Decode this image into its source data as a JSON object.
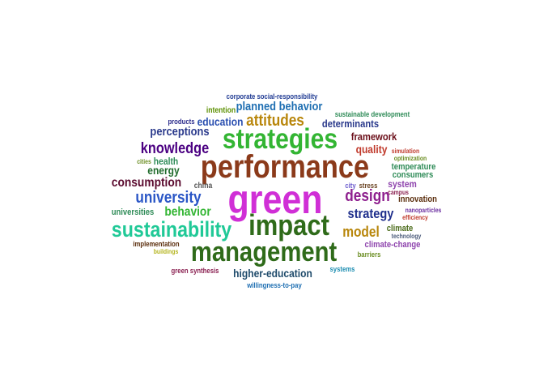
{
  "words": [
    {
      "text": "corporate social-responsibility",
      "color": "#1f3a93"
    },
    {
      "text": "intention",
      "color": "#5b8f00"
    },
    {
      "text": "planned behavior",
      "color": "#1f6fb2"
    },
    {
      "text": "sustainable development",
      "color": "#2e8b57"
    },
    {
      "text": "products",
      "color": "#2b2b8c"
    },
    {
      "text": "education",
      "color": "#2a4fb0"
    },
    {
      "text": "attitudes",
      "color": "#b8860b"
    },
    {
      "text": "determinants",
      "color": "#2b3a8c"
    },
    {
      "text": "perceptions",
      "color": "#2b3a8c"
    },
    {
      "text": "strategies",
      "color": "#33b533"
    },
    {
      "text": "framework",
      "color": "#6b0f1a"
    },
    {
      "text": "knowledge",
      "color": "#4b0082"
    },
    {
      "text": "quality",
      "color": "#c0392b"
    },
    {
      "text": "simulation",
      "color": "#c0392b"
    },
    {
      "text": "optimization",
      "color": "#6b8e23"
    },
    {
      "text": "cities",
      "color": "#6b8e23"
    },
    {
      "text": "health",
      "color": "#2e8b57"
    },
    {
      "text": "performance",
      "color": "#8b3a1a"
    },
    {
      "text": "energy",
      "color": "#1f6b2b"
    },
    {
      "text": "temperature",
      "color": "#2e8b57"
    },
    {
      "text": "consumers",
      "color": "#2e8b57"
    },
    {
      "text": "consumption",
      "color": "#5a0a2e"
    },
    {
      "text": "china",
      "color": "#555555"
    },
    {
      "text": "green",
      "color": "#d02fd6"
    },
    {
      "text": "city",
      "color": "#6a5acd"
    },
    {
      "text": "stress",
      "color": "#6b4423"
    },
    {
      "text": "system",
      "color": "#8e44ad"
    },
    {
      "text": "campus",
      "color": "#8b2252"
    },
    {
      "text": "university",
      "color": "#2a56c6"
    },
    {
      "text": "design",
      "color": "#8e1f8e"
    },
    {
      "text": "innovation",
      "color": "#5a2d0c"
    },
    {
      "text": "universities",
      "color": "#2e8b57"
    },
    {
      "text": "behavior",
      "color": "#33b533"
    },
    {
      "text": "strategy",
      "color": "#1f2f8c"
    },
    {
      "text": "nanoparticles",
      "color": "#6b2fa0"
    },
    {
      "text": "efficiency",
      "color": "#c0392b"
    },
    {
      "text": "sustainability",
      "color": "#20c997"
    },
    {
      "text": "impact",
      "color": "#2f6b1a"
    },
    {
      "text": "model",
      "color": "#b8860b"
    },
    {
      "text": "climate",
      "color": "#4b6b1a"
    },
    {
      "text": "technology",
      "color": "#4b5b7a"
    },
    {
      "text": "implementation",
      "color": "#5a2d0c"
    },
    {
      "text": "management",
      "color": "#2f6b1a"
    },
    {
      "text": "climate-change",
      "color": "#8e44ad"
    },
    {
      "text": "buildings",
      "color": "#b5b520"
    },
    {
      "text": "barriers",
      "color": "#6b8e23"
    },
    {
      "text": "green synthesis",
      "color": "#8b2252"
    },
    {
      "text": "higher-education",
      "color": "#1f4b6b"
    },
    {
      "text": "systems",
      "color": "#1f8fb2"
    },
    {
      "text": "willingness-to-pay",
      "color": "#1f6fb2"
    }
  ]
}
